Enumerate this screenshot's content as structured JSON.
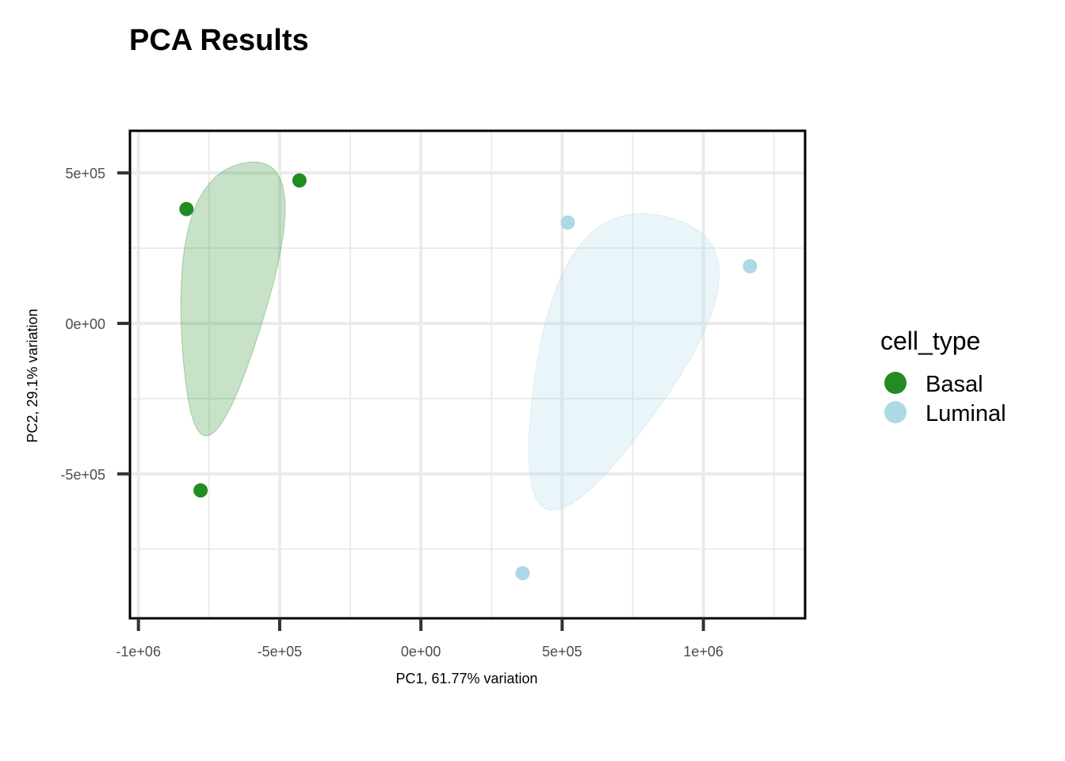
{
  "chart_data": {
    "type": "scatter",
    "title": "PCA Results",
    "xlabel": "PC1, 61.77% variation",
    "ylabel": "PC2, 29.1% variation",
    "xlim": [
      -1030000,
      1360000
    ],
    "ylim": [
      -980000,
      640000
    ],
    "xticks": [
      {
        "value": -1000000,
        "label": "-1e+06"
      },
      {
        "value": -500000,
        "label": "-5e+05"
      },
      {
        "value": 0,
        "label": "0e+00"
      },
      {
        "value": 500000,
        "label": "5e+05"
      },
      {
        "value": 1000000,
        "label": "1e+06"
      }
    ],
    "yticks": [
      {
        "value": 500000,
        "label": "5e+05"
      },
      {
        "value": 0,
        "label": "0e+00"
      },
      {
        "value": -500000,
        "label": "-5e+05"
      }
    ],
    "grid": true,
    "legend": {
      "title": "cell_type",
      "placement": "right"
    },
    "series": [
      {
        "name": "Basal",
        "color": "#228B22",
        "points": [
          {
            "x": -830000,
            "y": 380000
          },
          {
            "x": -430000,
            "y": 475000
          },
          {
            "x": -780000,
            "y": -555000
          }
        ]
      },
      {
        "name": "Luminal",
        "color": "#ADD8E6",
        "points": [
          {
            "x": 520000,
            "y": 335000
          },
          {
            "x": 1165000,
            "y": 190000
          },
          {
            "x": 360000,
            "y": -830000
          }
        ]
      }
    ]
  }
}
